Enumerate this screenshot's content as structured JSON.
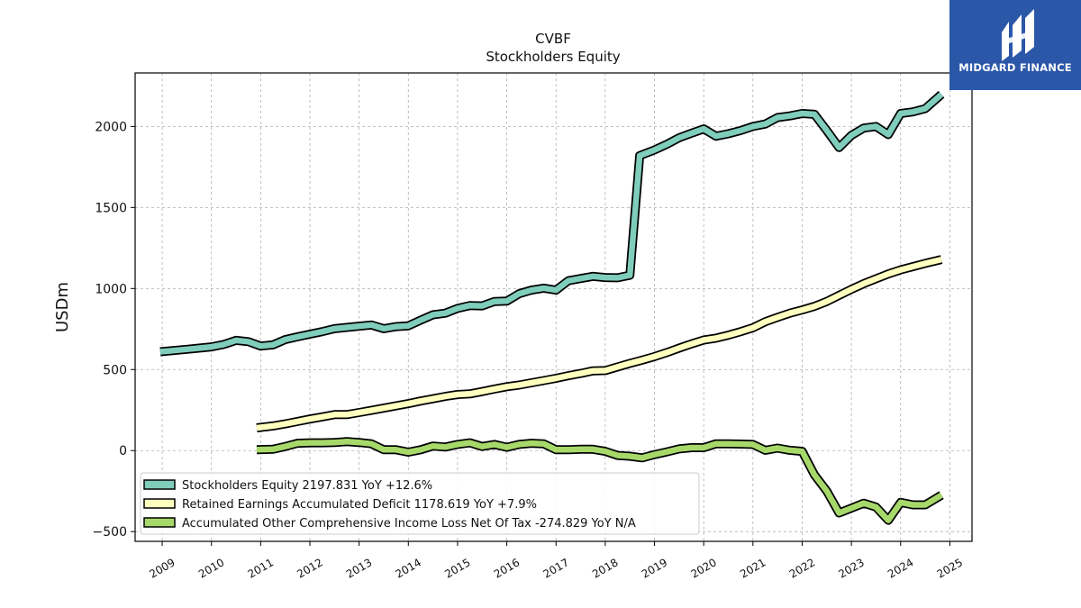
{
  "brand": {
    "name": "MIDGARD FINANCE",
    "color": "#2b57a8"
  },
  "chart_data": {
    "type": "line",
    "title": "CVBF",
    "subtitle": "Stockholders  Equity",
    "xlabel": "",
    "ylabel": "USDm",
    "xlim": [
      2008.45,
      2025.45
    ],
    "ylim": [
      -560,
      2330
    ],
    "x_ticks": [
      "2009",
      "2010",
      "2011",
      "2012",
      "2013",
      "2014",
      "2015",
      "2016",
      "2017",
      "2018",
      "2019",
      "2020",
      "2021",
      "2022",
      "2023",
      "2024",
      "2025"
    ],
    "y_ticks": [
      -500,
      0,
      500,
      1000,
      1500,
      2000
    ],
    "y_tick_labels": [
      "−500",
      "0",
      "500",
      "1000",
      "1500",
      "2000"
    ],
    "grid": true,
    "legend_position": "lower-left",
    "series": [
      {
        "name": "Stockholders Equity  2197.831 YoY +12.6%",
        "color": "#7fcdbb",
        "points": [
          [
            2008.96,
            610
          ],
          [
            2009.5,
            625
          ],
          [
            2010,
            640
          ],
          [
            2010.25,
            655
          ],
          [
            2010.5,
            680
          ],
          [
            2010.75,
            672
          ],
          [
            2011,
            645
          ],
          [
            2011.25,
            652
          ],
          [
            2011.5,
            685
          ],
          [
            2011.75,
            702
          ],
          [
            2012,
            718
          ],
          [
            2012.25,
            734
          ],
          [
            2012.5,
            752
          ],
          [
            2012.75,
            760
          ],
          [
            2013,
            768
          ],
          [
            2013.25,
            775
          ],
          [
            2013.5,
            752
          ],
          [
            2013.75,
            765
          ],
          [
            2014,
            770
          ],
          [
            2014.25,
            805
          ],
          [
            2014.5,
            838
          ],
          [
            2014.75,
            848
          ],
          [
            2015,
            877
          ],
          [
            2015.25,
            895
          ],
          [
            2015.5,
            893
          ],
          [
            2015.75,
            920
          ],
          [
            2016,
            922
          ],
          [
            2016.25,
            968
          ],
          [
            2016.5,
            990
          ],
          [
            2016.75,
            1002
          ],
          [
            2017,
            990
          ],
          [
            2017.25,
            1048
          ],
          [
            2017.5,
            1062
          ],
          [
            2017.75,
            1075
          ],
          [
            2018,
            1068
          ],
          [
            2018.25,
            1066
          ],
          [
            2018.5,
            1082
          ],
          [
            2018.7,
            1820
          ],
          [
            2019,
            1855
          ],
          [
            2019.25,
            1890
          ],
          [
            2019.5,
            1930
          ],
          [
            2019.75,
            1958
          ],
          [
            2020,
            1985
          ],
          [
            2020.25,
            1940
          ],
          [
            2020.5,
            1955
          ],
          [
            2020.75,
            1975
          ],
          [
            2021,
            2000
          ],
          [
            2021.25,
            2015
          ],
          [
            2021.5,
            2055
          ],
          [
            2021.75,
            2065
          ],
          [
            2022,
            2080
          ],
          [
            2022.25,
            2075
          ],
          [
            2022.5,
            1975
          ],
          [
            2022.75,
            1870
          ],
          [
            2023,
            1945
          ],
          [
            2023.25,
            1990
          ],
          [
            2023.5,
            2000
          ],
          [
            2023.75,
            1950
          ],
          [
            2024,
            2080
          ],
          [
            2024.25,
            2090
          ],
          [
            2024.5,
            2110
          ],
          [
            2024.83,
            2198
          ]
        ]
      },
      {
        "name": "Retained Earnings Accumulated Deficit  1178.619 YoY +7.9%",
        "color": "#ffffbf",
        "points": [
          [
            2010.92,
            140
          ],
          [
            2011.25,
            152
          ],
          [
            2011.5,
            165
          ],
          [
            2011.75,
            180
          ],
          [
            2012,
            195
          ],
          [
            2012.25,
            208
          ],
          [
            2012.5,
            222
          ],
          [
            2012.75,
            222
          ],
          [
            2013,
            235
          ],
          [
            2013.25,
            248
          ],
          [
            2013.5,
            262
          ],
          [
            2013.75,
            276
          ],
          [
            2014,
            290
          ],
          [
            2014.25,
            306
          ],
          [
            2014.5,
            320
          ],
          [
            2014.75,
            334
          ],
          [
            2015,
            346
          ],
          [
            2015.25,
            350
          ],
          [
            2015.5,
            364
          ],
          [
            2015.75,
            380
          ],
          [
            2016,
            394
          ],
          [
            2016.25,
            404
          ],
          [
            2016.5,
            418
          ],
          [
            2016.75,
            432
          ],
          [
            2017,
            446
          ],
          [
            2017.25,
            462
          ],
          [
            2017.5,
            476
          ],
          [
            2017.75,
            492
          ],
          [
            2018,
            494
          ],
          [
            2018.25,
            516
          ],
          [
            2018.5,
            538
          ],
          [
            2018.75,
            558
          ],
          [
            2019,
            580
          ],
          [
            2019.25,
            605
          ],
          [
            2019.5,
            632
          ],
          [
            2019.75,
            658
          ],
          [
            2020,
            682
          ],
          [
            2020.25,
            694
          ],
          [
            2020.5,
            712
          ],
          [
            2020.75,
            734
          ],
          [
            2021,
            758
          ],
          [
            2021.25,
            795
          ],
          [
            2021.5,
            822
          ],
          [
            2021.75,
            848
          ],
          [
            2022,
            868
          ],
          [
            2022.25,
            890
          ],
          [
            2022.5,
            920
          ],
          [
            2022.75,
            958
          ],
          [
            2023,
            995
          ],
          [
            2023.25,
            1030
          ],
          [
            2023.5,
            1060
          ],
          [
            2023.75,
            1090
          ],
          [
            2024,
            1115
          ],
          [
            2024.25,
            1135
          ],
          [
            2024.5,
            1155
          ],
          [
            2024.83,
            1179
          ]
        ]
      },
      {
        "name": "Accumulated Other Comprehensive Income Loss Net Of Tax  -274.829 YoY N/A",
        "color": "#a6d96a",
        "points": [
          [
            2010.92,
            5
          ],
          [
            2011.25,
            8
          ],
          [
            2011.5,
            25
          ],
          [
            2011.75,
            45
          ],
          [
            2012,
            48
          ],
          [
            2012.25,
            48
          ],
          [
            2012.5,
            50
          ],
          [
            2012.75,
            55
          ],
          [
            2013,
            50
          ],
          [
            2013.25,
            42
          ],
          [
            2013.5,
            5
          ],
          [
            2013.75,
            5
          ],
          [
            2014,
            -10
          ],
          [
            2014.25,
            5
          ],
          [
            2014.5,
            28
          ],
          [
            2014.75,
            22
          ],
          [
            2015,
            38
          ],
          [
            2015.25,
            48
          ],
          [
            2015.5,
            25
          ],
          [
            2015.75,
            38
          ],
          [
            2016,
            20
          ],
          [
            2016.25,
            38
          ],
          [
            2016.5,
            45
          ],
          [
            2016.75,
            42
          ],
          [
            2017,
            5
          ],
          [
            2017.25,
            5
          ],
          [
            2017.5,
            8
          ],
          [
            2017.75,
            8
          ],
          [
            2018,
            -5
          ],
          [
            2018.25,
            -30
          ],
          [
            2018.5,
            -35
          ],
          [
            2018.75,
            -45
          ],
          [
            2019,
            -25
          ],
          [
            2019.25,
            -8
          ],
          [
            2019.5,
            10
          ],
          [
            2019.75,
            18
          ],
          [
            2020,
            18
          ],
          [
            2020.25,
            42
          ],
          [
            2020.5,
            42
          ],
          [
            2020.75,
            40
          ],
          [
            2021,
            38
          ],
          [
            2021.25,
            2
          ],
          [
            2021.5,
            15
          ],
          [
            2021.75,
            2
          ],
          [
            2022,
            -5
          ],
          [
            2022.25,
            -150
          ],
          [
            2022.5,
            -250
          ],
          [
            2022.75,
            -385
          ],
          [
            2023,
            -355
          ],
          [
            2023.25,
            -325
          ],
          [
            2023.5,
            -348
          ],
          [
            2023.75,
            -430
          ],
          [
            2024,
            -320
          ],
          [
            2024.25,
            -335
          ],
          [
            2024.5,
            -335
          ],
          [
            2024.83,
            -275
          ]
        ]
      }
    ]
  }
}
